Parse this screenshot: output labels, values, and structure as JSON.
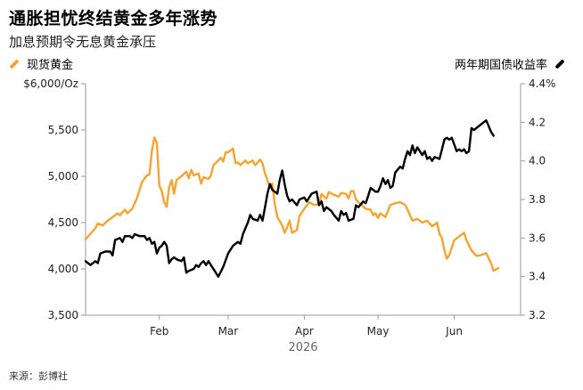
{
  "colors": {
    "gold": "#F5A431",
    "yield": "#000000",
    "axis": "#999999"
  },
  "chart_data": {
    "type": "line",
    "title": "通胀担忧终结黄金多年涨势",
    "subtitle": "加息预期令无息黄金承压",
    "source": "来源：彭博社",
    "legend_placement": "top",
    "grid": false,
    "x_axis": {
      "year_label": "2026",
      "range": [
        "2026-01-02",
        "2026-06-28"
      ],
      "ticks": [
        {
          "date": "2026-02-01",
          "label": "Feb"
        },
        {
          "date": "2026-03-01",
          "label": "Mar"
        },
        {
          "date": "2026-04-01",
          "label": "Apr"
        },
        {
          "date": "2026-05-01",
          "label": "May"
        },
        {
          "date": "2026-06-01",
          "label": "Jun"
        }
      ]
    },
    "y_left": {
      "range": [
        3500,
        6000
      ],
      "ticks": [
        {
          "value": 6000,
          "label": "$6,000/Oz"
        },
        {
          "value": 5500,
          "label": "5,500"
        },
        {
          "value": 5000,
          "label": "5,000"
        },
        {
          "value": 4500,
          "label": "4,500"
        },
        {
          "value": 4000,
          "label": "4,000"
        },
        {
          "value": 3500,
          "label": "3,500"
        }
      ]
    },
    "y_right": {
      "range": [
        3.2,
        4.4
      ],
      "ticks": [
        {
          "value": 4.4,
          "label": "4.4%"
        },
        {
          "value": 4.2,
          "label": "4.2"
        },
        {
          "value": 4.0,
          "label": "4.0"
        },
        {
          "value": 3.8,
          "label": "3.8"
        },
        {
          "value": 3.6,
          "label": "3.6"
        },
        {
          "value": 3.4,
          "label": "3.4"
        },
        {
          "value": 3.2,
          "label": "3.2"
        }
      ]
    },
    "series": [
      {
        "name": "现货黄金",
        "axis": "left",
        "color": "#F5A431",
        "points": [
          [
            "2026-01-02",
            4320
          ],
          [
            "2026-01-04",
            4380
          ],
          [
            "2026-01-06",
            4440
          ],
          [
            "2026-01-07",
            4490
          ],
          [
            "2026-01-09",
            4470
          ],
          [
            "2026-01-11",
            4520
          ],
          [
            "2026-01-13",
            4560
          ],
          [
            "2026-01-15",
            4600
          ],
          [
            "2026-01-16",
            4580
          ],
          [
            "2026-01-18",
            4640
          ],
          [
            "2026-01-19",
            4600
          ],
          [
            "2026-01-21",
            4650
          ],
          [
            "2026-01-23",
            4770
          ],
          [
            "2026-01-25",
            4940
          ],
          [
            "2026-01-27",
            5010
          ],
          [
            "2026-01-28",
            5020
          ],
          [
            "2026-01-29",
            5280
          ],
          [
            "2026-01-30",
            5420
          ],
          [
            "2026-01-31",
            5360
          ],
          [
            "2026-02-01",
            4900
          ],
          [
            "2026-02-02",
            4840
          ],
          [
            "2026-02-03",
            4720
          ],
          [
            "2026-02-04",
            4670
          ],
          [
            "2026-02-05",
            4880
          ],
          [
            "2026-02-06",
            4960
          ],
          [
            "2026-02-07",
            4810
          ],
          [
            "2026-02-08",
            4960
          ],
          [
            "2026-02-10",
            5000
          ],
          [
            "2026-02-12",
            5050
          ],
          [
            "2026-02-13",
            4980
          ],
          [
            "2026-02-14",
            5070
          ],
          [
            "2026-02-15",
            5010
          ],
          [
            "2026-02-17",
            5030
          ],
          [
            "2026-02-18",
            4920
          ],
          [
            "2026-02-19",
            4990
          ],
          [
            "2026-02-21",
            4970
          ],
          [
            "2026-02-22",
            5010
          ],
          [
            "2026-02-23",
            5120
          ],
          [
            "2026-02-25",
            5170
          ],
          [
            "2026-02-26",
            5200
          ],
          [
            "2026-02-27",
            5160
          ],
          [
            "2026-02-28",
            5260
          ],
          [
            "2026-03-01",
            5260
          ],
          [
            "2026-03-03",
            5300
          ],
          [
            "2026-03-04",
            5140
          ],
          [
            "2026-03-05",
            5150
          ],
          [
            "2026-03-06",
            5120
          ],
          [
            "2026-03-08",
            5170
          ],
          [
            "2026-03-09",
            5140
          ],
          [
            "2026-03-11",
            5170
          ],
          [
            "2026-03-12",
            5120
          ],
          [
            "2026-03-14",
            5180
          ],
          [
            "2026-03-15",
            5140
          ],
          [
            "2026-03-16",
            5030
          ],
          [
            "2026-03-17",
            4960
          ],
          [
            "2026-03-18",
            4880
          ],
          [
            "2026-03-19",
            4920
          ],
          [
            "2026-03-20",
            4700
          ],
          [
            "2026-03-21",
            4560
          ],
          [
            "2026-03-23",
            4470
          ],
          [
            "2026-03-24",
            4390
          ],
          [
            "2026-03-25",
            4450
          ],
          [
            "2026-03-26",
            4520
          ],
          [
            "2026-03-27",
            4390
          ],
          [
            "2026-03-29",
            4420
          ],
          [
            "2026-03-30",
            4570
          ],
          [
            "2026-04-01",
            4650
          ],
          [
            "2026-04-03",
            4720
          ],
          [
            "2026-04-05",
            4690
          ],
          [
            "2026-04-07",
            4700
          ],
          [
            "2026-04-08",
            4810
          ],
          [
            "2026-04-09",
            4780
          ],
          [
            "2026-04-10",
            4760
          ],
          [
            "2026-04-11",
            4830
          ],
          [
            "2026-04-13",
            4800
          ],
          [
            "2026-04-15",
            4780
          ],
          [
            "2026-04-16",
            4820
          ],
          [
            "2026-04-18",
            4810
          ],
          [
            "2026-04-19",
            4760
          ],
          [
            "2026-04-20",
            4840
          ],
          [
            "2026-04-21",
            4840
          ],
          [
            "2026-04-22",
            4750
          ],
          [
            "2026-04-23",
            4720
          ],
          [
            "2026-04-24",
            4700
          ],
          [
            "2026-04-26",
            4650
          ],
          [
            "2026-04-28",
            4640
          ],
          [
            "2026-04-29",
            4580
          ],
          [
            "2026-04-30",
            4600
          ],
          [
            "2026-05-01",
            4550
          ],
          [
            "2026-05-02",
            4600
          ],
          [
            "2026-05-04",
            4560
          ],
          [
            "2026-05-06",
            4690
          ],
          [
            "2026-05-08",
            4710
          ],
          [
            "2026-05-10",
            4720
          ],
          [
            "2026-05-12",
            4690
          ],
          [
            "2026-05-13",
            4640
          ],
          [
            "2026-05-14",
            4580
          ],
          [
            "2026-05-15",
            4520
          ],
          [
            "2026-05-17",
            4540
          ],
          [
            "2026-05-19",
            4500
          ],
          [
            "2026-05-21",
            4520
          ],
          [
            "2026-05-23",
            4460
          ],
          [
            "2026-05-25",
            4500
          ],
          [
            "2026-05-26",
            4380
          ],
          [
            "2026-05-27",
            4330
          ],
          [
            "2026-05-28",
            4200
          ],
          [
            "2026-05-29",
            4110
          ],
          [
            "2026-05-30",
            4150
          ],
          [
            "2026-06-01",
            4310
          ],
          [
            "2026-06-03",
            4350
          ],
          [
            "2026-06-05",
            4390
          ],
          [
            "2026-06-06",
            4310
          ],
          [
            "2026-06-08",
            4200
          ],
          [
            "2026-06-10",
            4140
          ],
          [
            "2026-06-12",
            4150
          ],
          [
            "2026-06-14",
            4170
          ],
          [
            "2026-06-16",
            4060
          ],
          [
            "2026-06-17",
            3980
          ],
          [
            "2026-06-19",
            4010
          ]
        ]
      },
      {
        "name": "两年期国债收益率",
        "axis": "right",
        "color": "#000000",
        "points": [
          [
            "2026-01-02",
            3.48
          ],
          [
            "2026-01-04",
            3.46
          ],
          [
            "2026-01-06",
            3.48
          ],
          [
            "2026-01-07",
            3.47
          ],
          [
            "2026-01-08",
            3.52
          ],
          [
            "2026-01-10",
            3.53
          ],
          [
            "2026-01-12",
            3.53
          ],
          [
            "2026-01-13",
            3.51
          ],
          [
            "2026-01-14",
            3.59
          ],
          [
            "2026-01-16",
            3.6
          ],
          [
            "2026-01-17",
            3.58
          ],
          [
            "2026-01-18",
            3.61
          ],
          [
            "2026-01-20",
            3.61
          ],
          [
            "2026-01-21",
            3.6
          ],
          [
            "2026-01-22",
            3.62
          ],
          [
            "2026-01-24",
            3.61
          ],
          [
            "2026-01-26",
            3.61
          ],
          [
            "2026-01-27",
            3.59
          ],
          [
            "2026-01-28",
            3.6
          ],
          [
            "2026-01-29",
            3.57
          ],
          [
            "2026-01-30",
            3.58
          ],
          [
            "2026-01-31",
            3.52
          ],
          [
            "2026-02-01",
            3.55
          ],
          [
            "2026-02-02",
            3.56
          ],
          [
            "2026-02-03",
            3.58
          ],
          [
            "2026-02-04",
            3.56
          ],
          [
            "2026-02-05",
            3.47
          ],
          [
            "2026-02-06",
            3.49
          ],
          [
            "2026-02-07",
            3.5
          ],
          [
            "2026-02-08",
            3.49
          ],
          [
            "2026-02-10",
            3.48
          ],
          [
            "2026-02-11",
            3.5
          ],
          [
            "2026-02-12",
            3.42
          ],
          [
            "2026-02-13",
            3.43
          ],
          [
            "2026-02-15",
            3.44
          ],
          [
            "2026-02-16",
            3.46
          ],
          [
            "2026-02-17",
            3.45
          ],
          [
            "2026-02-18",
            3.47
          ],
          [
            "2026-02-19",
            3.48
          ],
          [
            "2026-02-20",
            3.46
          ],
          [
            "2026-02-21",
            3.48
          ],
          [
            "2026-02-22",
            3.46
          ],
          [
            "2026-02-23",
            3.44
          ],
          [
            "2026-02-24",
            3.42
          ],
          [
            "2026-02-25",
            3.4
          ],
          [
            "2026-02-27",
            3.45
          ],
          [
            "2026-03-01",
            3.52
          ],
          [
            "2026-03-03",
            3.56
          ],
          [
            "2026-03-05",
            3.58
          ],
          [
            "2026-03-06",
            3.57
          ],
          [
            "2026-03-07",
            3.62
          ],
          [
            "2026-03-09",
            3.68
          ],
          [
            "2026-03-10",
            3.72
          ],
          [
            "2026-03-11",
            3.7
          ],
          [
            "2026-03-13",
            3.69
          ],
          [
            "2026-03-14",
            3.72
          ],
          [
            "2026-03-15",
            3.69
          ],
          [
            "2026-03-16",
            3.76
          ],
          [
            "2026-03-17",
            3.83
          ],
          [
            "2026-03-18",
            3.88
          ],
          [
            "2026-03-19",
            3.85
          ],
          [
            "2026-03-21",
            3.83
          ],
          [
            "2026-03-22",
            3.9
          ],
          [
            "2026-03-23",
            3.95
          ],
          [
            "2026-03-24",
            3.88
          ],
          [
            "2026-03-25",
            3.82
          ],
          [
            "2026-03-26",
            3.79
          ],
          [
            "2026-03-27",
            3.8
          ],
          [
            "2026-03-29",
            3.77
          ],
          [
            "2026-03-30",
            3.8
          ],
          [
            "2026-04-01",
            3.81
          ],
          [
            "2026-04-02",
            3.79
          ],
          [
            "2026-04-04",
            3.83
          ],
          [
            "2026-04-06",
            3.84
          ],
          [
            "2026-04-07",
            3.77
          ],
          [
            "2026-04-08",
            3.79
          ],
          [
            "2026-04-09",
            3.74
          ],
          [
            "2026-04-10",
            3.76
          ],
          [
            "2026-04-12",
            3.74
          ],
          [
            "2026-04-13",
            3.72
          ],
          [
            "2026-04-15",
            3.69
          ],
          [
            "2026-04-16",
            3.74
          ],
          [
            "2026-04-17",
            3.72
          ],
          [
            "2026-04-18",
            3.73
          ],
          [
            "2026-04-19",
            3.69
          ],
          [
            "2026-04-21",
            3.7
          ],
          [
            "2026-04-22",
            3.77
          ],
          [
            "2026-04-23",
            3.76
          ],
          [
            "2026-04-25",
            3.79
          ],
          [
            "2026-04-26",
            3.78
          ],
          [
            "2026-04-27",
            3.82
          ],
          [
            "2026-04-28",
            3.86
          ],
          [
            "2026-04-30",
            3.84
          ],
          [
            "2026-05-01",
            3.84
          ],
          [
            "2026-05-02",
            3.87
          ],
          [
            "2026-05-03",
            3.91
          ],
          [
            "2026-05-04",
            3.88
          ],
          [
            "2026-05-05",
            3.9
          ],
          [
            "2026-05-06",
            3.86
          ],
          [
            "2026-05-07",
            3.87
          ],
          [
            "2026-05-08",
            3.94
          ],
          [
            "2026-05-10",
            3.97
          ],
          [
            "2026-05-11",
            3.96
          ],
          [
            "2026-05-12",
            4.01
          ],
          [
            "2026-05-13",
            4.05
          ],
          [
            "2026-05-14",
            4.03
          ],
          [
            "2026-05-15",
            4.08
          ],
          [
            "2026-05-16",
            4.04
          ],
          [
            "2026-05-17",
            4.07
          ],
          [
            "2026-05-19",
            4.03
          ],
          [
            "2026-05-20",
            4.05
          ],
          [
            "2026-05-21",
            4.01
          ],
          [
            "2026-05-22",
            4.02
          ],
          [
            "2026-05-23",
            4.0
          ],
          [
            "2026-05-24",
            4.02
          ],
          [
            "2026-05-26",
            4.01
          ],
          [
            "2026-05-27",
            4.06
          ],
          [
            "2026-05-28",
            4.11
          ],
          [
            "2026-05-29",
            4.12
          ],
          [
            "2026-05-30",
            4.11
          ],
          [
            "2026-05-31",
            4.12
          ],
          [
            "2026-06-02",
            4.05
          ],
          [
            "2026-06-03",
            4.06
          ],
          [
            "2026-06-04",
            4.05
          ],
          [
            "2026-06-05",
            4.06
          ],
          [
            "2026-06-06",
            4.04
          ],
          [
            "2026-06-07",
            4.05
          ],
          [
            "2026-06-08",
            4.17
          ],
          [
            "2026-06-09",
            4.16
          ],
          [
            "2026-06-11",
            4.18
          ],
          [
            "2026-06-12",
            4.19
          ],
          [
            "2026-06-13",
            4.2
          ],
          [
            "2026-06-14",
            4.21
          ],
          [
            "2026-06-15",
            4.18
          ],
          [
            "2026-06-16",
            4.15
          ],
          [
            "2026-06-17",
            4.13
          ]
        ]
      }
    ]
  }
}
